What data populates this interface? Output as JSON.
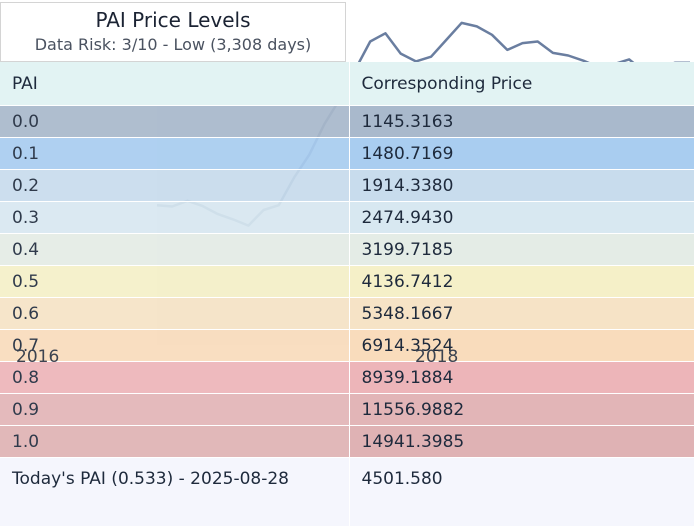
{
  "title": "PAI Price Levels",
  "subtitle": "Data Risk: 3/10 - Low (3,308 days)",
  "table": {
    "header": [
      "PAI",
      "Corresponding Price"
    ],
    "rows": [
      {
        "pai": "0.0",
        "price": "1145.3163",
        "color": "#a9b9cc"
      },
      {
        "pai": "0.1",
        "price": "1480.7169",
        "color": "#a9cdf0"
      },
      {
        "pai": "0.2",
        "price": "1914.3380",
        "color": "#c8dced"
      },
      {
        "pai": "0.3",
        "price": "2474.9430",
        "color": "#d8e8f1"
      },
      {
        "pai": "0.4",
        "price": "3199.7185",
        "color": "#e4ece6"
      },
      {
        "pai": "0.5",
        "price": "4136.7412",
        "color": "#f5f0c8"
      },
      {
        "pai": "0.6",
        "price": "5348.1667",
        "color": "#f6e3c6"
      },
      {
        "pai": "0.7",
        "price": "6914.3524",
        "color": "#f9dcbc"
      },
      {
        "pai": "0.8",
        "price": "8939.1884",
        "color": "#edb5b9"
      },
      {
        "pai": "0.9",
        "price": "11556.9882",
        "color": "#e2b5b7"
      },
      {
        "pai": "1.0",
        "price": "14941.3985",
        "color": "#dfb2b4"
      }
    ],
    "today_label": "Today's PAI (0.533) - 2025-08-28",
    "today_price": "4501.580",
    "header_color": "#e2f3f3",
    "today_color": "#f5f6fd"
  },
  "chart_data": {
    "type": "line",
    "x_tick_labels": [
      "2016",
      "2018"
    ],
    "note": "background price history line, partially hidden behind table",
    "series": [
      {
        "values": [
          1910,
          1880,
          2020,
          1890,
          1710,
          1600,
          1480,
          1800,
          1910,
          2700,
          3600,
          5300,
          7200,
          10400,
          14900,
          16500,
          12800,
          11600,
          12300,
          15200,
          18800,
          18000,
          16200,
          13400,
          14600,
          14900,
          12900,
          12500,
          11700,
          10800,
          11200,
          11900,
          10200,
          10700,
          11400,
          11400
        ]
      }
    ]
  }
}
